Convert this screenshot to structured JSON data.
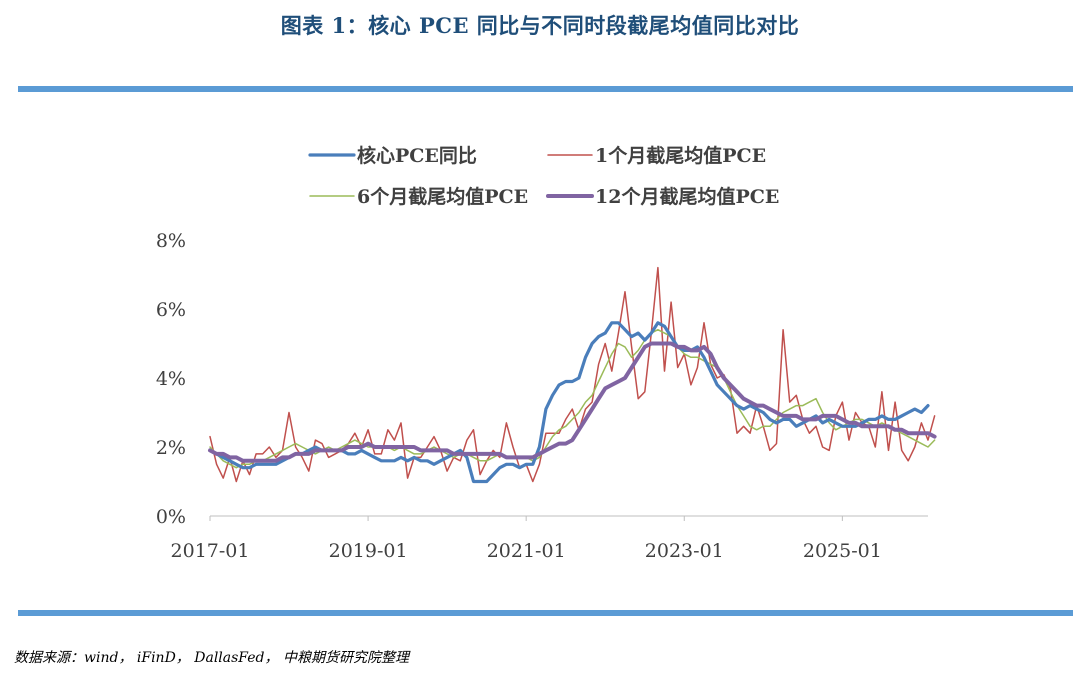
{
  "title": "图表 1：核心 PCE 同比与不同时段截尾均值同比对比",
  "source": "数据来源：wind， iFinD， DallasFed， 中粮期货研究院整理",
  "colors": {
    "rule": "#5b9bd5",
    "title": "#1f4e79"
  },
  "chart_data": {
    "type": "line",
    "x_start": "2017-01",
    "x_frequency": "monthly",
    "x_ticks": [
      "2017-01",
      "2019-01",
      "2021-01",
      "2023-01",
      "2025-01"
    ],
    "ylim": [
      0,
      8
    ],
    "y_ticks": [
      0,
      2,
      4,
      6,
      8
    ],
    "y_tick_labels": [
      "0%",
      "2%",
      "4%",
      "6%",
      "8%"
    ],
    "grid": false,
    "legend_position": "top",
    "series": [
      {
        "name": "核心PCE同比",
        "color": "#4a7ebb",
        "width": 3.2,
        "values": [
          1.9,
          1.8,
          1.7,
          1.6,
          1.5,
          1.4,
          1.4,
          1.5,
          1.5,
          1.5,
          1.5,
          1.6,
          1.7,
          1.8,
          1.8,
          1.9,
          2.0,
          1.9,
          1.9,
          1.9,
          1.9,
          1.8,
          1.8,
          1.9,
          1.8,
          1.7,
          1.6,
          1.6,
          1.6,
          1.7,
          1.6,
          1.7,
          1.6,
          1.6,
          1.5,
          1.6,
          1.7,
          1.8,
          1.9,
          1.7,
          1.0,
          1.0,
          1.0,
          1.2,
          1.4,
          1.5,
          1.5,
          1.4,
          1.5,
          1.5,
          2.0,
          3.1,
          3.5,
          3.8,
          3.9,
          3.9,
          4.0,
          4.6,
          5.0,
          5.2,
          5.3,
          5.6,
          5.6,
          5.4,
          5.2,
          5.3,
          5.1,
          5.3,
          5.6,
          5.5,
          5.2,
          4.9,
          4.8,
          4.8,
          4.9,
          4.6,
          4.2,
          3.8,
          3.6,
          3.4,
          3.2,
          3.1,
          3.2,
          3.1,
          3.0,
          2.8,
          2.7,
          2.8,
          2.8,
          2.6,
          2.7,
          2.8,
          2.9,
          2.7,
          2.8,
          2.7,
          2.6,
          2.6,
          2.6,
          2.7,
          2.8,
          2.8,
          2.9,
          2.8,
          2.8,
          2.9,
          3.0,
          3.1,
          3.0,
          3.2
        ]
      },
      {
        "name": "1个月截尾均值PCE",
        "color": "#c0504d",
        "width": 1.5,
        "values": [
          2.3,
          1.5,
          1.1,
          1.7,
          1.0,
          1.6,
          1.2,
          1.8,
          1.8,
          2.0,
          1.7,
          1.9,
          3.0,
          2.0,
          1.7,
          1.3,
          2.2,
          2.1,
          1.7,
          1.8,
          1.9,
          2.1,
          2.4,
          2.0,
          2.5,
          1.8,
          1.8,
          2.5,
          2.2,
          2.7,
          1.1,
          1.7,
          1.7,
          2.0,
          2.3,
          1.9,
          1.3,
          1.7,
          1.6,
          2.2,
          2.5,
          1.2,
          1.6,
          1.9,
          1.7,
          2.7,
          2.0,
          1.4,
          1.5,
          1.0,
          1.5,
          2.4,
          2.4,
          2.4,
          2.8,
          3.1,
          2.5,
          3.1,
          3.3,
          4.4,
          5.0,
          4.2,
          5.3,
          6.5,
          4.9,
          3.4,
          3.6,
          5.3,
          7.2,
          4.2,
          6.2,
          4.3,
          4.7,
          3.8,
          4.3,
          5.6,
          4.4,
          4.0,
          4.1,
          3.7,
          2.4,
          2.6,
          2.4,
          3.2,
          2.6,
          1.9,
          2.1,
          5.4,
          3.3,
          3.5,
          2.8,
          2.4,
          2.6,
          2.0,
          1.9,
          2.9,
          3.3,
          2.2,
          3.0,
          2.7,
          2.6,
          2.0,
          3.6,
          1.9,
          3.3,
          1.9,
          1.6,
          2.0,
          2.7,
          2.2,
          2.9
        ]
      },
      {
        "name": "6个月截尾均值PCE",
        "color": "#9bbb59",
        "width": 1.5,
        "values": [
          2.0,
          1.8,
          1.6,
          1.5,
          1.4,
          1.5,
          1.5,
          1.6,
          1.6,
          1.7,
          1.8,
          1.9,
          2.0,
          2.1,
          2.0,
          1.9,
          1.8,
          1.9,
          2.0,
          1.9,
          2.0,
          2.1,
          2.2,
          2.1,
          2.0,
          2.0,
          2.0,
          2.0,
          1.9,
          2.0,
          1.9,
          1.8,
          1.8,
          1.9,
          2.0,
          1.9,
          1.8,
          1.7,
          1.8,
          1.8,
          1.7,
          1.6,
          1.6,
          1.7,
          1.8,
          1.7,
          1.7,
          1.7,
          1.7,
          1.6,
          1.7,
          2.0,
          2.3,
          2.5,
          2.6,
          2.8,
          3.0,
          3.3,
          3.5,
          3.9,
          4.3,
          4.7,
          5.0,
          4.9,
          4.6,
          4.8,
          5.1,
          5.3,
          5.4,
          5.3,
          5.2,
          4.9,
          4.7,
          4.6,
          4.6,
          4.5,
          4.4,
          4.3,
          4.0,
          3.6,
          3.2,
          2.9,
          2.6,
          2.5,
          2.6,
          2.6,
          2.8,
          3.0,
          3.1,
          3.2,
          3.2,
          3.3,
          3.4,
          3.0,
          2.7,
          2.5,
          2.6,
          2.7,
          2.8,
          2.8,
          2.7,
          2.6,
          2.7,
          2.6,
          2.5,
          2.4,
          2.3,
          2.2,
          2.1,
          2.0,
          2.2
        ]
      },
      {
        "name": "12个月截尾均值PCE",
        "color": "#8064a2",
        "width": 4,
        "values": [
          1.9,
          1.8,
          1.8,
          1.7,
          1.7,
          1.6,
          1.6,
          1.6,
          1.6,
          1.6,
          1.6,
          1.7,
          1.7,
          1.8,
          1.8,
          1.8,
          1.9,
          1.9,
          1.9,
          1.9,
          1.9,
          2.0,
          2.0,
          2.0,
          2.1,
          2.0,
          2.0,
          2.0,
          2.0,
          2.0,
          2.0,
          2.0,
          1.9,
          1.9,
          1.9,
          1.9,
          1.9,
          1.8,
          1.8,
          1.8,
          1.8,
          1.8,
          1.8,
          1.8,
          1.8,
          1.7,
          1.7,
          1.7,
          1.7,
          1.7,
          1.8,
          1.9,
          2.0,
          2.1,
          2.1,
          2.2,
          2.5,
          2.8,
          3.1,
          3.4,
          3.7,
          3.8,
          3.9,
          4.0,
          4.3,
          4.6,
          4.9,
          5.0,
          5.0,
          5.0,
          5.0,
          4.9,
          4.9,
          4.8,
          4.8,
          4.9,
          4.7,
          4.3,
          4.0,
          3.8,
          3.6,
          3.4,
          3.3,
          3.2,
          3.2,
          3.1,
          3.0,
          2.9,
          2.9,
          2.9,
          2.8,
          2.8,
          2.8,
          2.9,
          2.9,
          2.9,
          2.8,
          2.7,
          2.7,
          2.6,
          2.6,
          2.6,
          2.6,
          2.6,
          2.5,
          2.5,
          2.4,
          2.4,
          2.4,
          2.4,
          2.3
        ]
      }
    ]
  }
}
